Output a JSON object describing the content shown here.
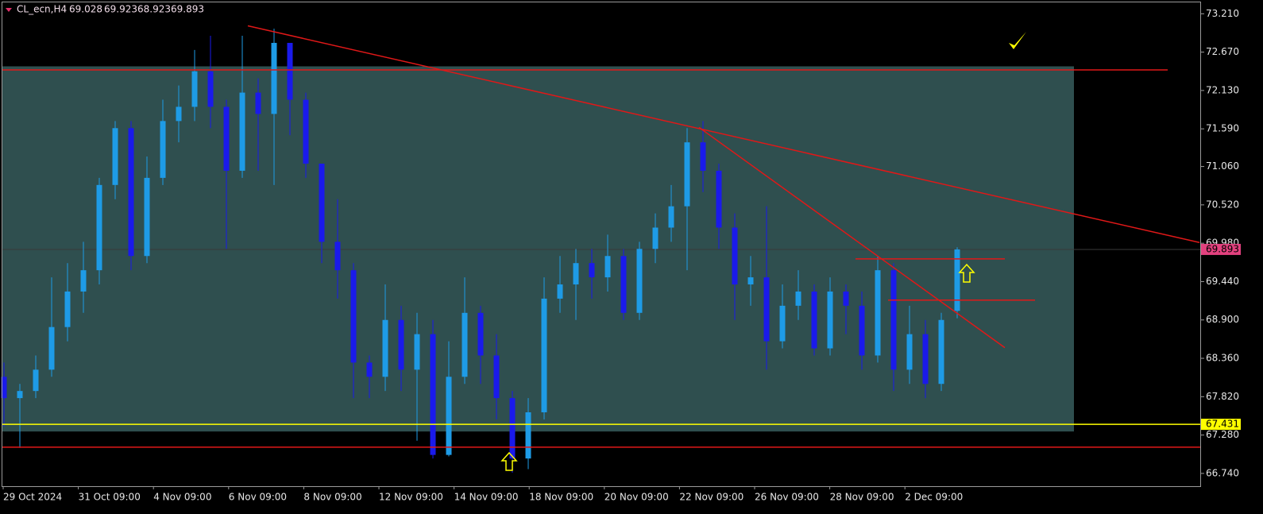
{
  "chart_data": {
    "type": "candlestick",
    "title": "CL_ecn,H4",
    "ylim": [
      66.56,
      73.37
    ],
    "yticks": [
      {
        "value": 73.21,
        "label": "73.210"
      },
      {
        "value": 72.67,
        "label": "72.670"
      },
      {
        "value": 72.13,
        "label": "72.130"
      },
      {
        "value": 71.59,
        "label": "71.590"
      },
      {
        "value": 71.06,
        "label": "71.060"
      },
      {
        "value": 70.52,
        "label": "70.520"
      },
      {
        "value": 69.98,
        "label": "69.980"
      },
      {
        "value": 69.44,
        "label": "69.440"
      },
      {
        "value": 68.9,
        "label": "68.900"
      },
      {
        "value": 68.36,
        "label": "68.360"
      },
      {
        "value": 67.82,
        "label": "67.820"
      },
      {
        "value": 67.28,
        "label": "67.280"
      },
      {
        "value": 66.74,
        "label": "66.740"
      }
    ],
    "x_labels": [
      "29 Oct 2024",
      "31 Oct 09:00",
      "4 Nov 09:00",
      "6 Nov 09:00",
      "8 Nov 09:00",
      "12 Nov 09:00",
      "14 Nov 09:00",
      "18 Nov 09:00",
      "20 Nov 09:00",
      "22 Nov 09:00",
      "26 Nov 09:00",
      "28 Nov 09:00",
      "2 Dec 09:00"
    ],
    "colors": {
      "up": "#1e9be6",
      "down": "#1a1aeb"
    },
    "ohlc": [
      [
        68.1,
        68.3,
        67.4,
        67.8
      ],
      [
        67.8,
        68.0,
        67.1,
        67.9
      ],
      [
        67.9,
        68.4,
        67.8,
        68.2
      ],
      [
        68.2,
        69.5,
        68.1,
        68.8
      ],
      [
        68.8,
        69.7,
        68.6,
        69.3
      ],
      [
        69.3,
        70.0,
        69.0,
        69.6
      ],
      [
        69.6,
        70.9,
        69.4,
        70.8
      ],
      [
        70.8,
        71.7,
        70.6,
        71.6
      ],
      [
        71.6,
        71.7,
        69.6,
        69.8
      ],
      [
        69.8,
        71.2,
        69.7,
        70.9
      ],
      [
        70.9,
        72.0,
        70.8,
        71.7
      ],
      [
        71.7,
        72.2,
        71.4,
        71.9
      ],
      [
        71.9,
        72.7,
        71.7,
        72.4
      ],
      [
        72.4,
        72.9,
        71.6,
        71.9
      ],
      [
        71.9,
        72.0,
        69.9,
        71.0
      ],
      [
        71.0,
        72.9,
        70.9,
        72.1
      ],
      [
        72.1,
        72.3,
        71.0,
        71.8
      ],
      [
        71.8,
        73.0,
        70.8,
        72.8
      ],
      [
        72.8,
        72.8,
        71.5,
        72.0
      ],
      [
        72.0,
        72.1,
        70.9,
        71.1
      ],
      [
        71.1,
        71.1,
        69.7,
        70.0
      ],
      [
        70.0,
        70.6,
        69.2,
        69.6
      ],
      [
        69.6,
        69.7,
        67.8,
        68.3
      ],
      [
        68.3,
        68.4,
        67.8,
        68.1
      ],
      [
        68.1,
        69.4,
        67.9,
        68.9
      ],
      [
        68.9,
        69.1,
        67.9,
        68.2
      ],
      [
        68.2,
        69.0,
        67.2,
        68.7
      ],
      [
        68.7,
        68.9,
        66.95,
        67.0
      ],
      [
        67.0,
        68.6,
        66.98,
        68.1
      ],
      [
        68.1,
        69.5,
        68.0,
        69.0
      ],
      [
        69.0,
        69.1,
        68.0,
        68.4
      ],
      [
        68.4,
        68.7,
        67.5,
        67.8
      ],
      [
        67.8,
        67.9,
        66.75,
        66.95
      ],
      [
        66.95,
        67.8,
        66.8,
        67.6
      ],
      [
        67.6,
        69.5,
        67.5,
        69.2
      ],
      [
        69.2,
        69.8,
        69.0,
        69.4
      ],
      [
        69.4,
        69.9,
        68.9,
        69.7
      ],
      [
        69.7,
        69.9,
        69.2,
        69.5
      ],
      [
        69.5,
        70.1,
        69.3,
        69.8
      ],
      [
        69.8,
        69.9,
        68.9,
        69.0
      ],
      [
        69.0,
        70.0,
        68.9,
        69.9
      ],
      [
        69.9,
        70.4,
        69.7,
        70.2
      ],
      [
        70.2,
        70.8,
        70.0,
        70.5
      ],
      [
        70.5,
        71.6,
        69.6,
        71.4
      ],
      [
        71.4,
        71.7,
        70.7,
        71.0
      ],
      [
        71.0,
        71.1,
        69.9,
        70.2
      ],
      [
        70.2,
        70.4,
        68.9,
        69.4
      ],
      [
        69.4,
        69.8,
        69.1,
        69.5
      ],
      [
        69.5,
        70.5,
        68.2,
        68.6
      ],
      [
        68.6,
        69.4,
        68.5,
        69.1
      ],
      [
        69.1,
        69.6,
        68.9,
        69.3
      ],
      [
        69.3,
        69.4,
        68.4,
        68.5
      ],
      [
        68.5,
        69.5,
        68.4,
        69.3
      ],
      [
        69.3,
        69.4,
        68.7,
        69.1
      ],
      [
        69.1,
        69.3,
        68.2,
        68.4
      ],
      [
        68.4,
        69.8,
        68.3,
        69.6
      ],
      [
        69.6,
        69.7,
        67.9,
        68.2
      ],
      [
        68.2,
        69.1,
        68.0,
        68.7
      ],
      [
        68.7,
        68.9,
        67.8,
        68.0
      ],
      [
        68.0,
        69.0,
        67.9,
        68.9
      ],
      [
        69.028,
        69.923,
        68.923,
        69.893
      ]
    ],
    "zone": {
      "x": [
        -0.1,
        67.35
      ],
      "y": [
        67.33,
        72.47
      ],
      "color": "#2f4f4f"
    },
    "hlines": [
      {
        "y": 72.42,
        "x": [
          -0.1,
          73.25
        ],
        "color": "#e01818"
      },
      {
        "y": 67.11,
        "x": [
          -0.1,
          75.3
        ],
        "color": "#e01818"
      },
      {
        "y": 69.76,
        "x": [
          53.6,
          63.0
        ],
        "color": "#e01818"
      },
      {
        "y": 69.18,
        "x": [
          55.65,
          64.9
        ],
        "color": "#e01818"
      }
    ],
    "trendlines": [
      {
        "x": [
          15.35,
          75.25
        ],
        "y": [
          73.04,
          69.99
        ],
        "color": "#e01818"
      },
      {
        "x": [
          43.75,
          63.0
        ],
        "y": [
          71.61,
          68.51
        ],
        "color": "#e01818"
      }
    ],
    "support": {
      "value": 67.431,
      "color": "#ffff00"
    },
    "price_color": "#e2417e",
    "arrows": [
      {
        "x": 31.8,
        "y": 67.03
      },
      {
        "x": 60.6,
        "y": 69.68
      }
    ],
    "arrow_color": "#ffff00"
  }
}
